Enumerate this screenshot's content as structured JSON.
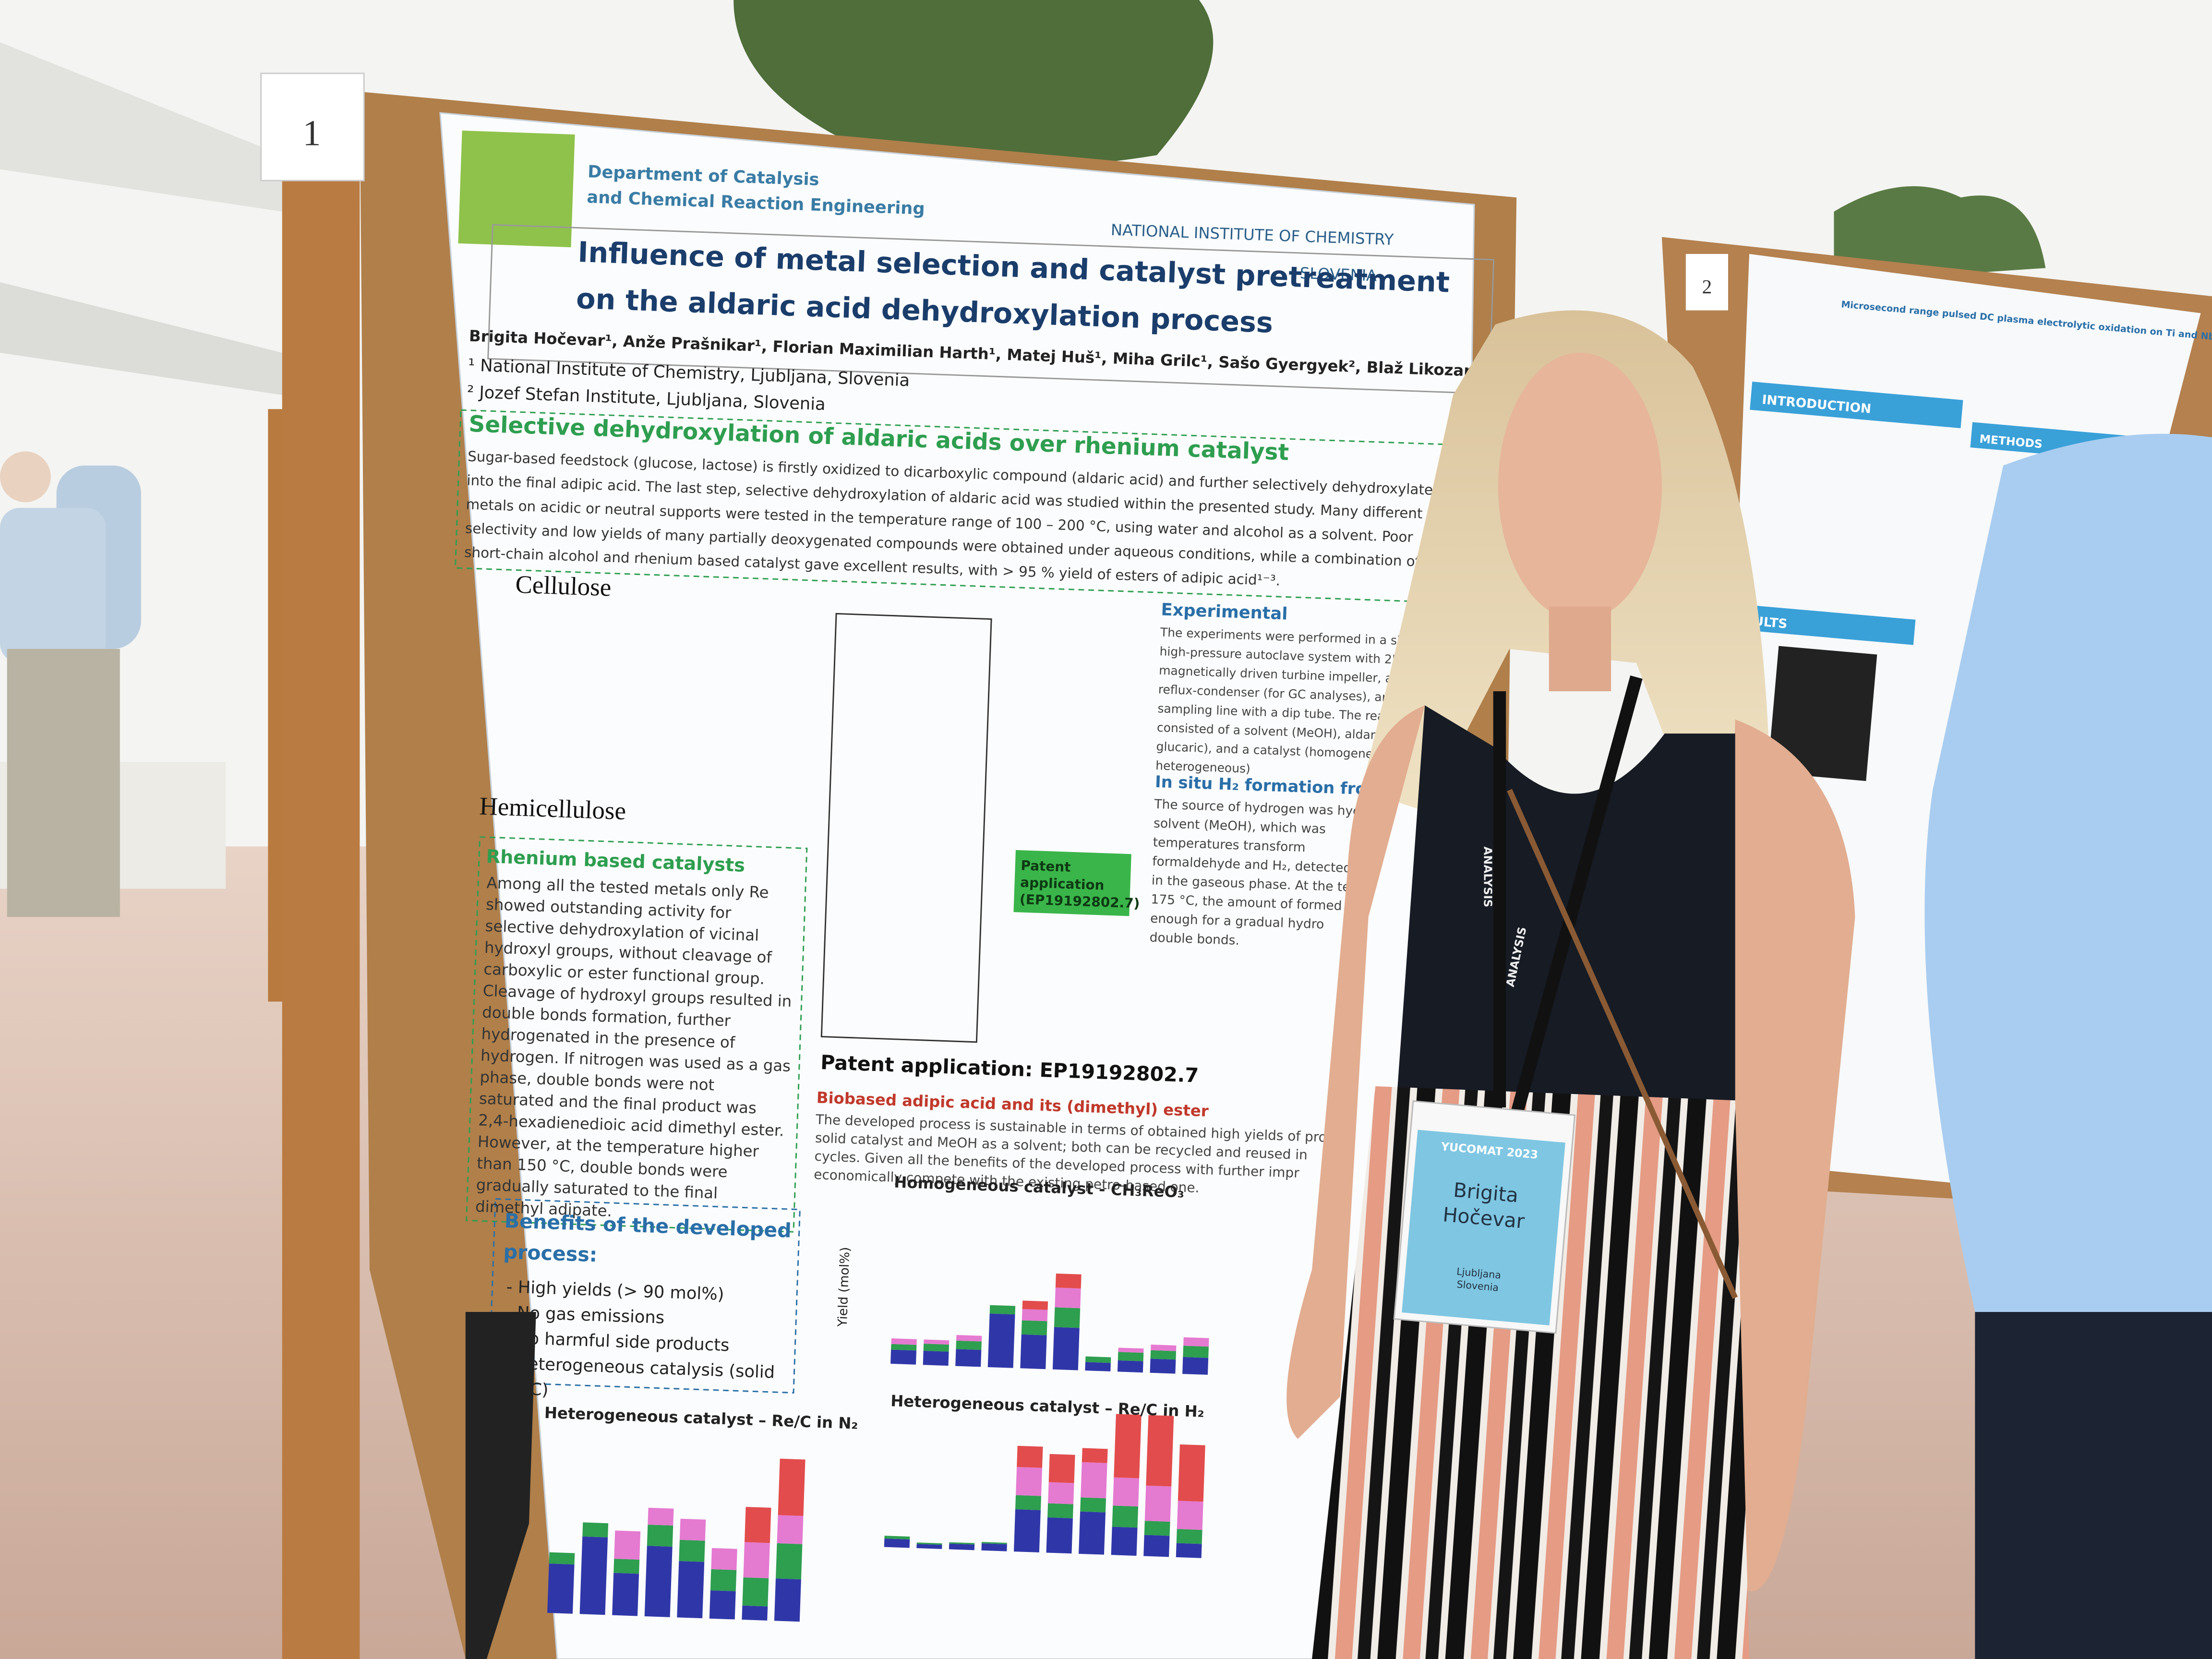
{
  "board_number": "1",
  "header": {
    "department": [
      "Department of Catalysis",
      "and Chemical Reaction Engineering"
    ],
    "institute": [
      "NATIONAL INSTITUTE OF CHEMISTRY",
      "SLOVENIA"
    ],
    "title": [
      "Influence of metal selection and catalyst pretreatment",
      "on the aldaric acid dehydroxylation process"
    ],
    "authors": "Brigita Hočevar¹, Anže Prašnikar¹, Florian Maximilian Harth¹, Matej Huš¹, Miha Grilc¹, Sašo Gyergyek², Blaž Likozar¹",
    "affiliations": [
      "¹ National Institute of Chemistry, Ljubljana, Slovenia",
      "² Jozef Stefan Institute, Ljubljana, Slovenia"
    ]
  },
  "intro": {
    "heading": "Selective dehydroxylation of aldaric acids over rhenium catalyst",
    "lines": [
      "Sugar-based feedstock (glucose, lactose) is firstly oxidized to dicarboxylic compound (aldaric acid) and further selectively dehydroxylated",
      "into the final adipic acid. The last step, selective dehydroxylation of aldaric acid was studied within the presented study. Many different",
      "metals on acidic or neutral supports were tested in the temperature range of 100 – 200 °C, using water and alcohol as a solvent. Poor",
      "selectivity and low yields of many partially deoxygenated compounds were obtained under aqueous conditions, while a combination of",
      "short-chain alcohol and rhenium based catalyst gave excellent results, with > 95 % yield of esters of adipic acid¹⁻³."
    ]
  },
  "scheme": {
    "cellulose": "Cellulose",
    "hemicellulose": "Hemicellulose",
    "patent_box": [
      "Patent",
      "application",
      "(EP19192802.7)"
    ]
  },
  "rhenium": {
    "heading": "Rhenium based catalysts",
    "lines": [
      "Among all the tested metals only Re",
      "showed outstanding activity for",
      "selective dehydroxylation of vicinal",
      "hydroxyl groups, without cleavage of",
      "carboxylic or ester functional group.",
      "Cleavage of hydroxyl groups resulted in",
      "double bonds formation, further",
      "hydrogenated in the presence of",
      "hydrogen. If nitrogen was used as a gas",
      "phase, double bonds were not",
      "saturated and the final product was",
      "2,4-hexadienedioic acid dimethyl ester.",
      "However, at the temperature higher",
      "than 150 °C, double bonds were",
      "gradually saturated to the final",
      "dimethyl adipate."
    ]
  },
  "experimental": {
    "heading": "Experimental",
    "lines": [
      "The experiments were performed in a six-parallel",
      "high-pressure autoclave system with 250 mL vess",
      "magnetically driven turbine impeller, a gaseou",
      "reflux-condenser (for GC analyses), and a liqu",
      "sampling line with a dip tube. The reaction",
      "consisted of a solvent (MeOH), aldaric acid (",
      "glucaric), and a catalyst (homogeneo",
      "heterogeneous)"
    ]
  },
  "in_situ": {
    "heading": "In situ H₂ formation from met",
    "lines": [
      "The source of hydrogen was hyd",
      "solvent (MeOH), which was",
      "temperatures transform",
      "formaldehyde and H₂, detected",
      "in the gaseous phase. At the te",
      "175 °C, the amount of formed h",
      "enough for a gradual hydro",
      "double bonds."
    ]
  },
  "patent_heading": "Patent application: EP19192802.7",
  "biobased": {
    "heading": "Biobased adipic acid and its (dimethyl) ester",
    "lines": [
      "The developed process is sustainable in terms of obtained high yields of pro",
      "solid catalyst and MeOH as a solvent; both can be recycled and reused in",
      "cycles. Given all the benefits of the developed process with further impr",
      "economically compete with the existing petro-based one."
    ]
  },
  "benefits": {
    "heading": [
      "Benefits of the developed",
      "process:"
    ],
    "items": [
      "- High yields (> 90 mol%)",
      "- No gas emissions",
      "- No harmful side products",
      "- Heterogeneous catalysis (solid",
      "Re/C)"
    ]
  },
  "charts": {
    "homogeneous": "Homogeneous catalyst - CH₃ReO₃",
    "hetero_n2": "Heterogeneous catalyst – Re/C in N₂",
    "hetero_h2": "Heterogeneous catalyst – Re/C in H₂",
    "y_axis": "Yield (mol%)"
  },
  "badge": {
    "event": "YUCOMAT 2023",
    "name": [
      "Brigita",
      "Hočevar"
    ],
    "city": [
      "Ljubljana",
      "Slovenia"
    ]
  },
  "lanyard": "ANALYSIS",
  "second_poster": {
    "number": "2",
    "title": "Microsecond range pulsed DC plasma electrolytic oxidation on Ti and Nb",
    "headings": [
      "INTRODUCTION",
      "METHODS",
      "RESULTS"
    ]
  }
}
